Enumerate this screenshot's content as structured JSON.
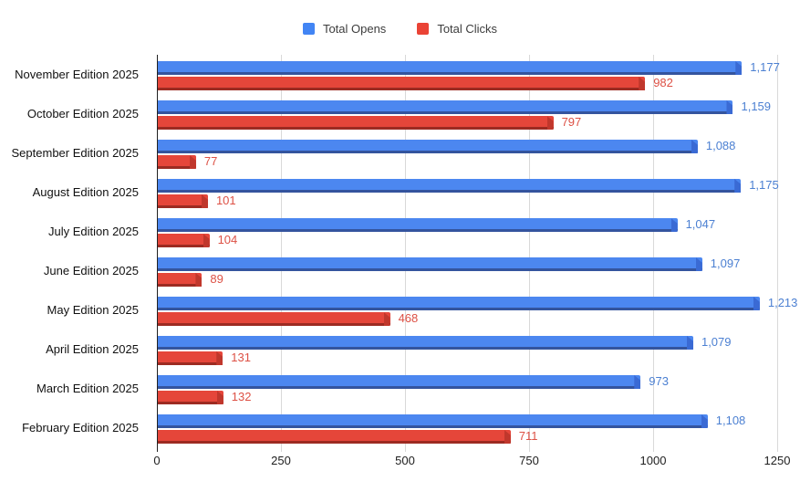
{
  "legend": {
    "items": [
      {
        "label": "Total Opens",
        "color": "#4285F4"
      },
      {
        "label": "Total Clicks",
        "color": "#EA4335"
      }
    ]
  },
  "chart_data": {
    "type": "bar",
    "orientation": "horizontal",
    "title": "",
    "categories": [
      "November Edition 2025",
      "October Edition 2025",
      "September Edition 2025",
      "August Edition 2025",
      "July Edition 2025",
      "June Edition 2025",
      "May Edition 2025",
      "April Edition 2025",
      "March Edition 2025",
      "February Edition 2025"
    ],
    "series": [
      {
        "name": "Total Opens",
        "color": "#4285F4",
        "values": [
          1177,
          1159,
          1088,
          1175,
          1047,
          1097,
          1213,
          1079,
          973,
          1108
        ],
        "labels": [
          "1,177",
          "1,159",
          "1,088",
          "1,175",
          "1,047",
          "1,097",
          "1,213",
          "1,079",
          "973",
          "1,108"
        ]
      },
      {
        "name": "Total Clicks",
        "color": "#EA4335",
        "values": [
          982,
          797,
          77,
          101,
          104,
          89,
          468,
          131,
          132,
          711
        ],
        "labels": [
          "982",
          "797",
          "77",
          "101",
          "104",
          "89",
          "468",
          "131",
          "132",
          "711"
        ]
      }
    ],
    "xlim": [
      0,
      1250
    ],
    "x_ticks": [
      "0",
      "250",
      "500",
      "750",
      "1000",
      "1250"
    ],
    "x_tick_values": [
      0,
      250,
      500,
      750,
      1000,
      1250
    ],
    "grid": true,
    "legend_position": "top"
  }
}
